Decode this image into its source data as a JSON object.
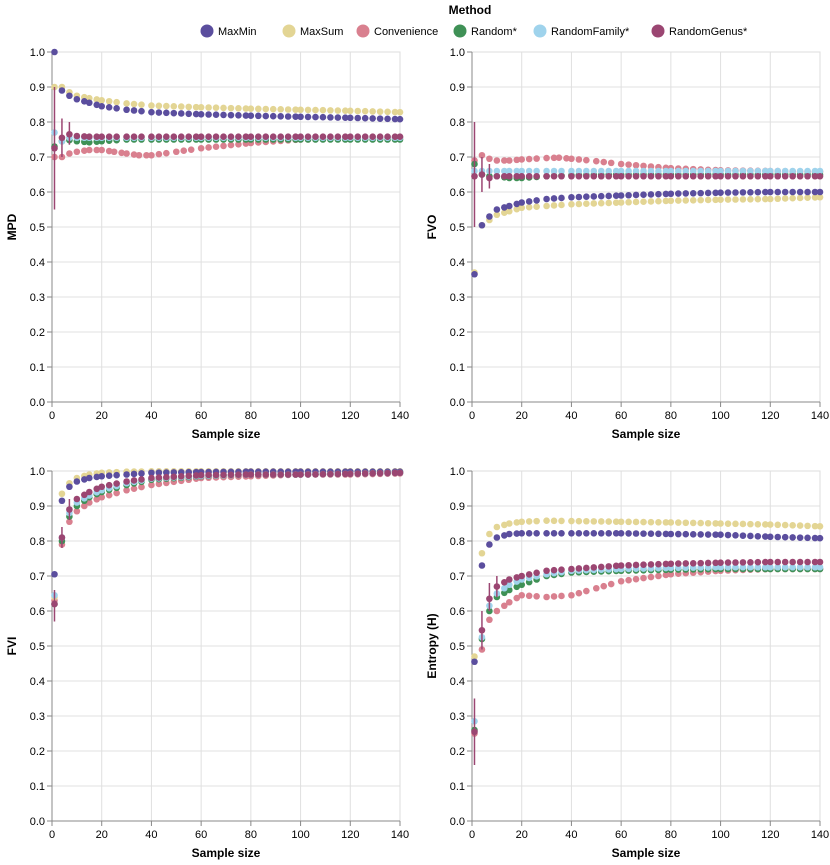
{
  "legend": {
    "title": "Method",
    "entries": [
      {
        "name": "MaxMin",
        "color": "#5b4e9e"
      },
      {
        "name": "MaxSum",
        "color": "#e3d594"
      },
      {
        "name": "Convenience",
        "color": "#d9808f"
      },
      {
        "name": "Random*",
        "color": "#3f9156"
      },
      {
        "name": "RandomFamily*",
        "color": "#9fd3ec"
      },
      {
        "name": "RandomGenus*",
        "color": "#9b4672"
      }
    ]
  },
  "chart_data": [
    {
      "type": "scatter",
      "panel": "top-left",
      "xlabel": "Sample size",
      "ylabel": "MPD",
      "xlim": [
        0,
        140
      ],
      "ylim": [
        0,
        1
      ],
      "xticks": [
        0,
        20,
        40,
        60,
        80,
        100,
        120,
        140
      ],
      "yticks": [
        0.0,
        0.1,
        0.2,
        0.3,
        0.4,
        0.5,
        0.6,
        0.7,
        0.8,
        0.9,
        1.0
      ],
      "series": [
        {
          "name": "MaxMin",
          "x": [
            1,
            4,
            7,
            10,
            15,
            20,
            30,
            40,
            60,
            80,
            100,
            120,
            140
          ],
          "y": [
            1.0,
            0.89,
            0.875,
            0.865,
            0.855,
            0.845,
            0.835,
            0.828,
            0.822,
            0.818,
            0.815,
            0.812,
            0.808
          ]
        },
        {
          "name": "MaxSum",
          "x": [
            1,
            4,
            7,
            10,
            15,
            20,
            30,
            40,
            60,
            80,
            100,
            120,
            140
          ],
          "y": [
            0.9,
            0.9,
            0.885,
            0.875,
            0.868,
            0.862,
            0.853,
            0.847,
            0.842,
            0.838,
            0.835,
            0.832,
            0.828
          ]
        },
        {
          "name": "Convenience",
          "x": [
            1,
            4,
            7,
            10,
            15,
            20,
            25,
            30,
            35,
            40,
            50,
            60,
            80,
            100,
            120,
            140
          ],
          "y": [
            0.7,
            0.7,
            0.71,
            0.715,
            0.72,
            0.72,
            0.715,
            0.71,
            0.705,
            0.705,
            0.715,
            0.725,
            0.74,
            0.75,
            0.752,
            0.755
          ]
        },
        {
          "name": "Random*",
          "x": [
            1,
            4,
            7,
            10,
            15,
            20,
            30,
            40,
            60,
            80,
            100,
            120,
            140
          ],
          "y": [
            0.73,
            0.745,
            0.748,
            0.745,
            0.742,
            0.745,
            0.75,
            0.75,
            0.75,
            0.75,
            0.75,
            0.75,
            0.75
          ]
        },
        {
          "name": "RandomFamily*",
          "x": [
            1,
            4,
            7,
            10,
            15,
            20,
            30,
            40,
            60,
            80,
            100,
            120,
            140
          ],
          "y": [
            0.77,
            0.745,
            0.755,
            0.755,
            0.755,
            0.755,
            0.755,
            0.755,
            0.755,
            0.755,
            0.755,
            0.755,
            0.755
          ]
        },
        {
          "name": "RandomGenus*",
          "x": [
            1,
            4,
            7,
            10,
            15,
            20,
            30,
            40,
            60,
            80,
            100,
            120,
            140
          ],
          "y": [
            0.725,
            0.755,
            0.765,
            0.76,
            0.758,
            0.758,
            0.758,
            0.758,
            0.758,
            0.758,
            0.758,
            0.758,
            0.758
          ],
          "err": [
            [
              0.55,
              0.9
            ],
            [
              0.7,
              0.81
            ],
            [
              0.735,
              0.8
            ],
            null,
            null,
            null,
            null,
            null,
            null,
            null,
            null,
            null,
            null
          ]
        }
      ]
    },
    {
      "type": "scatter",
      "panel": "top-right",
      "xlabel": "Sample size",
      "ylabel": "FVO",
      "xlim": [
        0,
        140
      ],
      "ylim": [
        0,
        1
      ],
      "xticks": [
        0,
        20,
        40,
        60,
        80,
        100,
        120,
        140
      ],
      "yticks": [
        0.0,
        0.1,
        0.2,
        0.3,
        0.4,
        0.5,
        0.6,
        0.7,
        0.8,
        0.9,
        1.0
      ],
      "series": [
        {
          "name": "MaxMin",
          "x": [
            1,
            4,
            7,
            10,
            15,
            20,
            30,
            40,
            60,
            80,
            100,
            120,
            140
          ],
          "y": [
            0.365,
            0.505,
            0.53,
            0.55,
            0.56,
            0.57,
            0.58,
            0.585,
            0.59,
            0.595,
            0.598,
            0.6,
            0.6
          ]
        },
        {
          "name": "MaxSum",
          "x": [
            1,
            4,
            7,
            10,
            15,
            20,
            30,
            40,
            60,
            80,
            100,
            120,
            140
          ],
          "y": [
            0.37,
            0.505,
            0.52,
            0.535,
            0.545,
            0.555,
            0.56,
            0.565,
            0.57,
            0.575,
            0.578,
            0.58,
            0.585
          ]
        },
        {
          "name": "Convenience",
          "x": [
            1,
            4,
            7,
            10,
            15,
            20,
            30,
            35,
            40,
            50,
            60,
            80,
            100,
            120,
            140
          ],
          "y": [
            0.69,
            0.705,
            0.695,
            0.69,
            0.69,
            0.693,
            0.697,
            0.698,
            0.695,
            0.688,
            0.68,
            0.668,
            0.662,
            0.66,
            0.658
          ]
        },
        {
          "name": "Random*",
          "x": [
            1,
            4,
            7,
            10,
            15,
            20,
            30,
            40,
            60,
            80,
            100,
            120,
            140
          ],
          "y": [
            0.68,
            0.65,
            0.645,
            0.645,
            0.64,
            0.64,
            0.645,
            0.648,
            0.65,
            0.65,
            0.65,
            0.65,
            0.65
          ]
        },
        {
          "name": "RandomFamily*",
          "x": [
            1,
            4,
            7,
            10,
            15,
            20,
            30,
            40,
            60,
            80,
            100,
            120,
            140
          ],
          "y": [
            0.66,
            0.66,
            0.66,
            0.66,
            0.66,
            0.66,
            0.66,
            0.66,
            0.66,
            0.66,
            0.66,
            0.66,
            0.66
          ]
        },
        {
          "name": "RandomGenus*",
          "x": [
            1,
            4,
            7,
            10,
            15,
            20,
            30,
            40,
            60,
            80,
            100,
            120,
            140
          ],
          "y": [
            0.645,
            0.65,
            0.64,
            0.645,
            0.645,
            0.645,
            0.645,
            0.645,
            0.645,
            0.645,
            0.645,
            0.645,
            0.645
          ],
          "err": [
            [
              0.5,
              0.8
            ],
            [
              0.6,
              0.7
            ],
            [
              0.61,
              0.68
            ],
            null,
            null,
            null,
            null,
            null,
            null,
            null,
            null,
            null,
            null
          ]
        }
      ]
    },
    {
      "type": "scatter",
      "panel": "bottom-left",
      "xlabel": "Sample size",
      "ylabel": "FVI",
      "xlim": [
        0,
        140
      ],
      "ylim": [
        0,
        1
      ],
      "xticks": [
        0,
        20,
        40,
        60,
        80,
        100,
        120,
        140
      ],
      "yticks": [
        0.0,
        0.1,
        0.2,
        0.3,
        0.4,
        0.5,
        0.6,
        0.7,
        0.8,
        0.9,
        1.0
      ],
      "series": [
        {
          "name": "MaxMin",
          "x": [
            1,
            4,
            7,
            10,
            15,
            20,
            30,
            40,
            60,
            80,
            100,
            120,
            140
          ],
          "y": [
            0.705,
            0.915,
            0.955,
            0.97,
            0.98,
            0.985,
            0.99,
            0.995,
            0.997,
            0.998,
            0.998,
            0.998,
            0.998
          ]
        },
        {
          "name": "MaxSum",
          "x": [
            1,
            4,
            7,
            10,
            15,
            20,
            30,
            40,
            60,
            80,
            100,
            120,
            140
          ],
          "y": [
            0.64,
            0.935,
            0.965,
            0.98,
            0.99,
            0.995,
            0.998,
            0.999,
            0.999,
            0.999,
            0.999,
            0.999,
            0.999
          ]
        },
        {
          "name": "Convenience",
          "x": [
            1,
            4,
            7,
            10,
            15,
            20,
            30,
            40,
            60,
            80,
            100,
            120,
            140
          ],
          "y": [
            0.63,
            0.79,
            0.855,
            0.885,
            0.91,
            0.925,
            0.945,
            0.96,
            0.98,
            0.985,
            0.99,
            0.99,
            0.993
          ]
        },
        {
          "name": "Random*",
          "x": [
            1,
            4,
            7,
            10,
            15,
            20,
            30,
            40,
            60,
            80,
            100,
            120,
            140
          ],
          "y": [
            0.62,
            0.8,
            0.87,
            0.9,
            0.925,
            0.94,
            0.96,
            0.975,
            0.985,
            0.99,
            0.99,
            0.992,
            0.995
          ]
        },
        {
          "name": "RandomFamily*",
          "x": [
            1,
            4,
            7,
            10,
            15,
            20,
            30,
            40,
            60,
            80,
            100,
            120,
            140
          ],
          "y": [
            0.645,
            0.81,
            0.88,
            0.91,
            0.93,
            0.945,
            0.965,
            0.978,
            0.986,
            0.99,
            0.99,
            0.992,
            0.995
          ]
        },
        {
          "name": "RandomGenus*",
          "x": [
            1,
            4,
            7,
            10,
            15,
            20,
            30,
            40,
            60,
            80,
            100,
            120,
            140
          ],
          "y": [
            0.62,
            0.81,
            0.89,
            0.92,
            0.94,
            0.955,
            0.97,
            0.98,
            0.988,
            0.99,
            0.99,
            0.992,
            0.995
          ],
          "err": [
            [
              0.57,
              0.66
            ],
            [
              0.78,
              0.84
            ],
            [
              0.86,
              0.92
            ],
            null,
            null,
            null,
            null,
            null,
            null,
            null,
            null,
            null,
            null
          ]
        }
      ]
    },
    {
      "type": "scatter",
      "panel": "bottom-right",
      "xlabel": "Sample size",
      "ylabel": "Entropy (H)",
      "xlim": [
        0,
        140
      ],
      "ylim": [
        0,
        1
      ],
      "xticks": [
        0,
        20,
        40,
        60,
        80,
        100,
        120,
        140
      ],
      "yticks": [
        0.0,
        0.1,
        0.2,
        0.3,
        0.4,
        0.5,
        0.6,
        0.7,
        0.8,
        0.9,
        1.0
      ],
      "series": [
        {
          "name": "MaxMin",
          "x": [
            1,
            4,
            7,
            10,
            15,
            20,
            30,
            40,
            60,
            80,
            100,
            120,
            140
          ],
          "y": [
            0.455,
            0.73,
            0.79,
            0.81,
            0.82,
            0.822,
            0.822,
            0.822,
            0.822,
            0.82,
            0.818,
            0.812,
            0.808
          ]
        },
        {
          "name": "MaxSum",
          "x": [
            1,
            4,
            7,
            10,
            15,
            20,
            30,
            40,
            60,
            80,
            100,
            120,
            140
          ],
          "y": [
            0.47,
            0.765,
            0.82,
            0.84,
            0.85,
            0.855,
            0.858,
            0.857,
            0.855,
            0.853,
            0.85,
            0.847,
            0.842
          ]
        },
        {
          "name": "Convenience",
          "x": [
            1,
            4,
            7,
            10,
            15,
            20,
            30,
            40,
            50,
            60,
            80,
            100,
            120,
            140
          ],
          "y": [
            0.25,
            0.49,
            0.575,
            0.6,
            0.625,
            0.645,
            0.64,
            0.645,
            0.665,
            0.685,
            0.705,
            0.715,
            0.72,
            0.72
          ]
        },
        {
          "name": "Random*",
          "x": [
            1,
            4,
            7,
            10,
            15,
            20,
            30,
            40,
            60,
            80,
            100,
            120,
            140
          ],
          "y": [
            0.26,
            0.52,
            0.6,
            0.64,
            0.66,
            0.675,
            0.7,
            0.71,
            0.715,
            0.718,
            0.72,
            0.72,
            0.72
          ]
        },
        {
          "name": "RandomFamily*",
          "x": [
            1,
            4,
            7,
            10,
            15,
            20,
            30,
            40,
            60,
            80,
            100,
            120,
            140
          ],
          "y": [
            0.285,
            0.525,
            0.615,
            0.65,
            0.675,
            0.69,
            0.705,
            0.715,
            0.72,
            0.723,
            0.725,
            0.725,
            0.725
          ]
        },
        {
          "name": "RandomGenus*",
          "x": [
            1,
            4,
            7,
            10,
            15,
            20,
            30,
            40,
            60,
            80,
            100,
            120,
            140
          ],
          "y": [
            0.255,
            0.545,
            0.635,
            0.67,
            0.69,
            0.7,
            0.715,
            0.72,
            0.73,
            0.735,
            0.738,
            0.74,
            0.74
          ],
          "err": [
            [
              0.16,
              0.35
            ],
            [
              0.49,
              0.6
            ],
            [
              0.6,
              0.68
            ],
            [
              0.64,
              0.7
            ],
            null,
            null,
            null,
            null,
            null,
            null,
            null,
            null,
            null
          ]
        }
      ]
    }
  ]
}
